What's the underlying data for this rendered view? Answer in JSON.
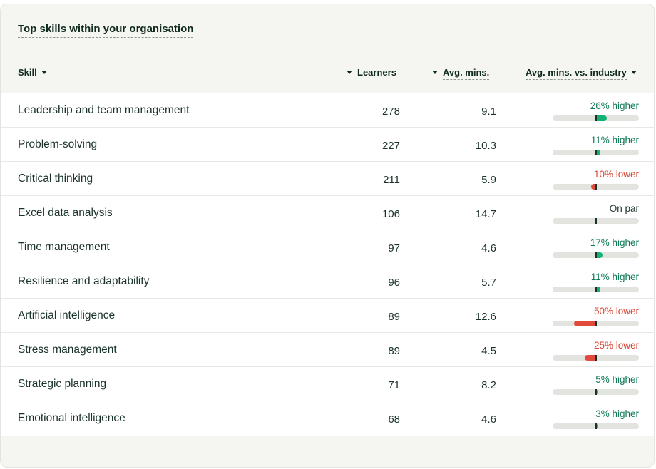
{
  "card": {
    "title": "Top skills within your organisation"
  },
  "columns": {
    "skill": "Skill",
    "learners": "Learners",
    "avg_mins": "Avg. mins.",
    "vs_industry": "Avg. mins. vs. industry"
  },
  "colors": {
    "higher": "#17b074",
    "higher_text": "#0f7a55",
    "lower": "#e24a3b",
    "lower_text": "#d64533",
    "track": "#e3e3e0"
  },
  "rows": [
    {
      "skill": "Leadership and team management",
      "learners": "278",
      "avg": "9.1",
      "cmp": "26% higher",
      "direction": "higher",
      "pct": 26
    },
    {
      "skill": "Problem-solving",
      "learners": "227",
      "avg": "10.3",
      "cmp": "11% higher",
      "direction": "higher",
      "pct": 11
    },
    {
      "skill": "Critical thinking",
      "learners": "211",
      "avg": "5.9",
      "cmp": "10% lower",
      "direction": "lower",
      "pct": 10
    },
    {
      "skill": "Excel data analysis",
      "learners": "106",
      "avg": "14.7",
      "cmp": "On par",
      "direction": "par",
      "pct": 0
    },
    {
      "skill": "Time management",
      "learners": "97",
      "avg": "4.6",
      "cmp": "17% higher",
      "direction": "higher",
      "pct": 17
    },
    {
      "skill": "Resilience and adaptability",
      "learners": "96",
      "avg": "5.7",
      "cmp": "11% higher",
      "direction": "higher",
      "pct": 11
    },
    {
      "skill": "Artificial intelligence",
      "learners": "89",
      "avg": "12.6",
      "cmp": "50% lower",
      "direction": "lower",
      "pct": 50
    },
    {
      "skill": "Stress management",
      "learners": "89",
      "avg": "4.5",
      "cmp": "25% lower",
      "direction": "lower",
      "pct": 25
    },
    {
      "skill": "Strategic planning",
      "learners": "71",
      "avg": "8.2",
      "cmp": "5% higher",
      "direction": "higher",
      "pct": 5
    },
    {
      "skill": "Emotional intelligence",
      "learners": "68",
      "avg": "4.6",
      "cmp": "3% higher",
      "direction": "higher",
      "pct": 3
    }
  ]
}
